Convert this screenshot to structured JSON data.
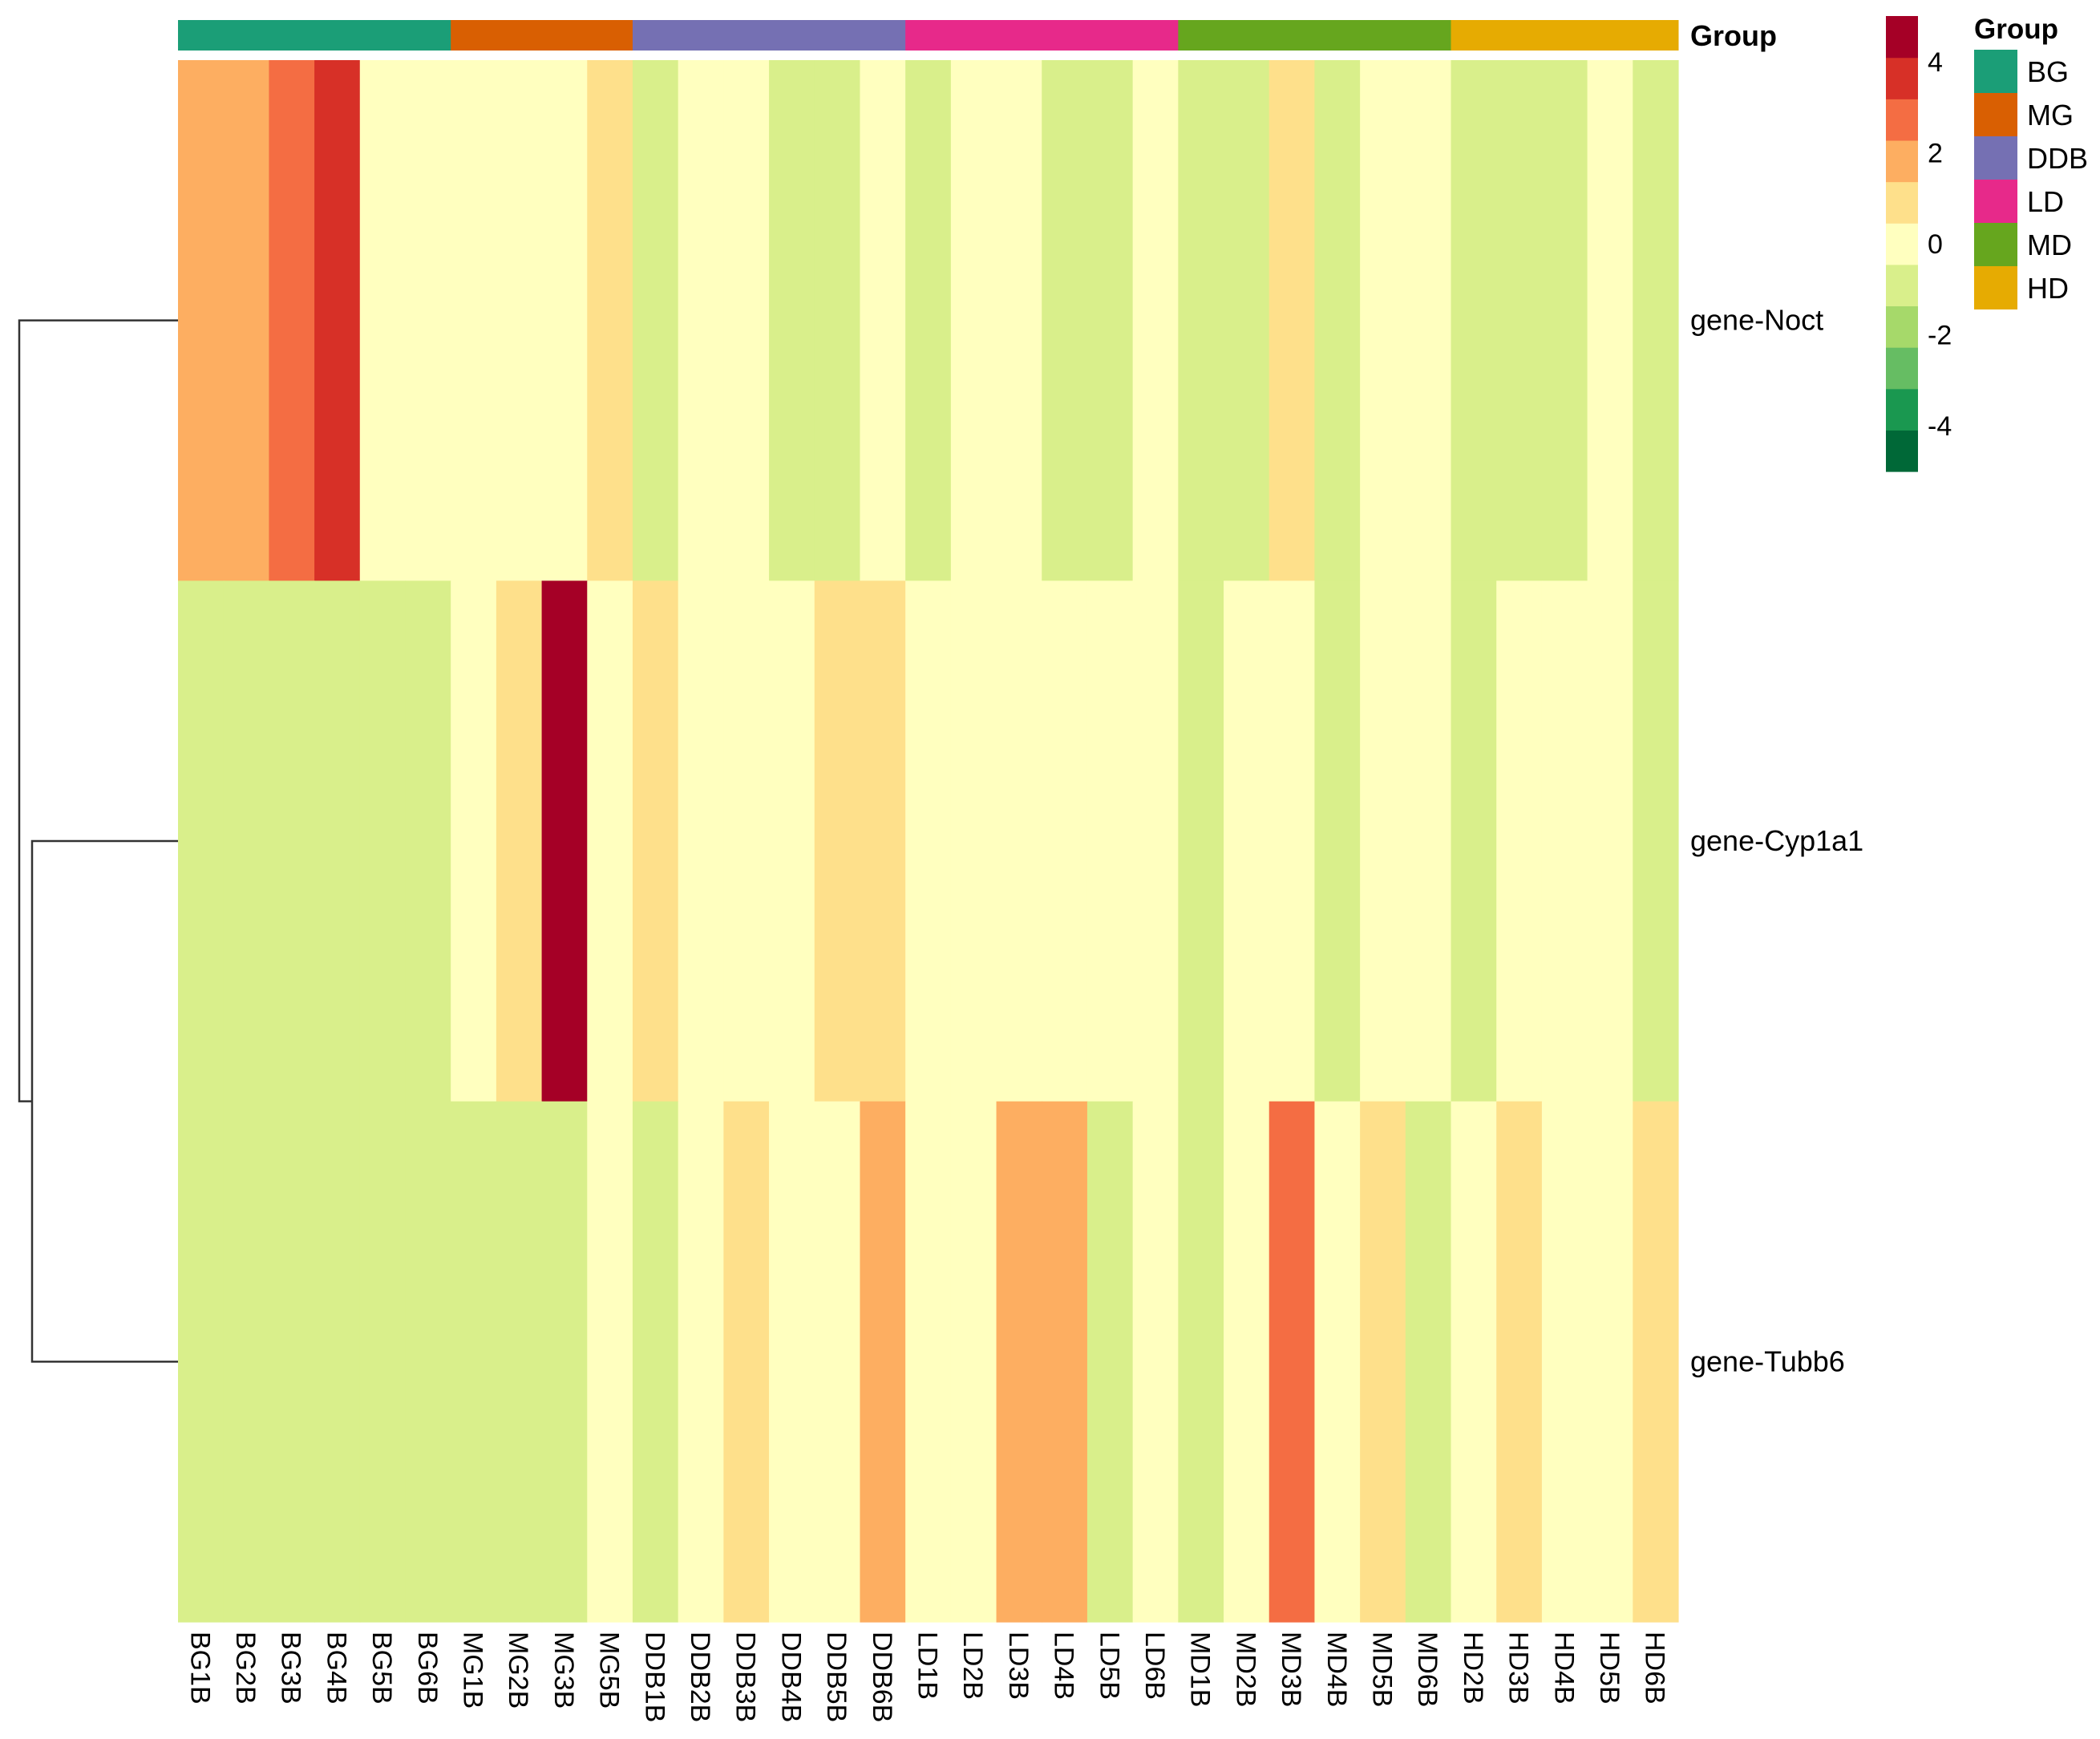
{
  "chart_data": {
    "type": "heatmap",
    "columns": [
      "BG1B",
      "BG2B",
      "BG3B",
      "BG4B",
      "BG5B",
      "BG6B",
      "MG1B",
      "MG2B",
      "MG3B",
      "MG5B",
      "DDB1B",
      "DDB2B",
      "DDB3B",
      "DDB4B",
      "DDB5B",
      "DDB6B",
      "LD1B",
      "LD2B",
      "LD3B",
      "LD4B",
      "LD5B",
      "LD6B",
      "MD1B",
      "MD2B",
      "MD3B",
      "MD4B",
      "MD5B",
      "MD6B",
      "HD2B",
      "HD3B",
      "HD4B",
      "HD5B",
      "HD6B"
    ],
    "rows": [
      "gene-Noct",
      "gene-Cyp1a1",
      "gene-Tubb6"
    ],
    "values": [
      [
        2,
        2,
        3,
        4,
        0,
        0,
        0,
        0,
        0,
        1,
        -1,
        0,
        0,
        -1,
        -1,
        0,
        -1,
        0,
        0,
        -1,
        -1,
        0,
        -1,
        -1,
        1,
        -1,
        0,
        0,
        -1,
        -1,
        -1,
        0,
        -1
      ],
      [
        -1,
        -1,
        -1,
        -1,
        -1,
        -1,
        0,
        1,
        5,
        0,
        1,
        0,
        0,
        0,
        1,
        1,
        0,
        0,
        0,
        0,
        0,
        0,
        -1,
        0,
        0,
        -1,
        0,
        0,
        -1,
        0,
        0,
        0,
        -1
      ],
      [
        -1,
        -1,
        -1,
        -1,
        -1,
        -1,
        -1,
        -1,
        -1,
        0,
        -1,
        0,
        1,
        0,
        0,
        2,
        0,
        0,
        2,
        2,
        -1,
        0,
        -1,
        0,
        3,
        0,
        1,
        -1,
        0,
        1,
        0,
        0,
        1
      ]
    ],
    "group_annotation": {
      "title": "Group",
      "groups": [
        {
          "name": "BG",
          "count": 6,
          "color": "#1B9E77"
        },
        {
          "name": "MG",
          "count": 4,
          "color": "#D95F02"
        },
        {
          "name": "DDB",
          "count": 6,
          "color": "#7570B3"
        },
        {
          "name": "LD",
          "count": 6,
          "color": "#E7298A"
        },
        {
          "name": "MD",
          "count": 6,
          "color": "#66A61E"
        },
        {
          "name": "HD",
          "count": 5,
          "color": "#E6AB02"
        }
      ]
    },
    "color_scale": {
      "min": -5,
      "max": 5,
      "breaks": [
        -4,
        -2,
        0,
        2,
        4
      ],
      "labels": [
        "-4",
        "-2",
        "0",
        "2",
        "4"
      ],
      "colors": [
        "#006837",
        "#1A9850",
        "#66BD63",
        "#A6D96A",
        "#D9EF8B",
        "#FFFFBF",
        "#FEE08B",
        "#FDAE61",
        "#F46D43",
        "#D73027",
        "#A50026"
      ]
    },
    "dendrogram": {
      "rows": true,
      "order": [
        "gene-Noct",
        "gene-Cyp1a1",
        "gene-Tubb6"
      ],
      "merge": [
        [
          "gene-Cyp1a1",
          "gene-Tubb6"
        ],
        [
          "gene-Noct",
          "cluster-1"
        ]
      ]
    }
  }
}
